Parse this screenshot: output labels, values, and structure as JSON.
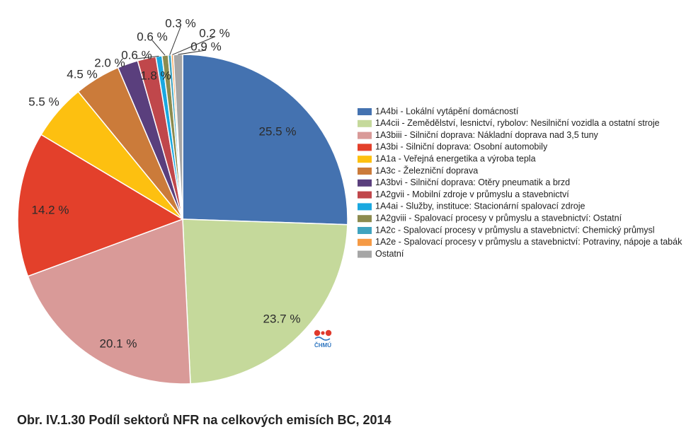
{
  "caption": "Obr. IV.1.30  Podíl sektorů NFR na celkových emisích BC, 2014",
  "logo": {
    "text": "ČHMÚ",
    "icon": "chmu-logo"
  },
  "chart_data": {
    "type": "pie",
    "title": "",
    "legend_position": "right",
    "start_angle_deg": 0,
    "direction": "clockwise",
    "unit": "%",
    "slices": [
      {
        "label": "1A4bi - Lokální vytápění domácností",
        "value": 25.5,
        "value_label": "25.5 %",
        "color": "#4472b0"
      },
      {
        "label": "1A4cii - Zemědělství, lesnictví, rybolov: Nesilniční vozidla a ostatní stroje",
        "value": 23.7,
        "value_label": "23.7 %",
        "color": "#c5d99b"
      },
      {
        "label": "1A3biii - Silniční doprava: Nákladní doprava nad 3,5 tuny",
        "value": 20.1,
        "value_label": "20.1 %",
        "color": "#d99a98"
      },
      {
        "label": "1A3bi - Silniční doprava: Osobní automobily",
        "value": 14.2,
        "value_label": "14.2 %",
        "color": "#e3402b"
      },
      {
        "label": "1A1a - Veřejná energetika a výroba tepla",
        "value": 5.5,
        "value_label": "5.5 %",
        "color": "#fdc010"
      },
      {
        "label": "1A3c - Železniční doprava",
        "value": 4.5,
        "value_label": "4.5 %",
        "color": "#cb7b3a"
      },
      {
        "label": "1A3bvi - Silniční doprava: Otěry pneumatik a brzd",
        "value": 2.0,
        "value_label": "2.0 %",
        "color": "#5a3f7d"
      },
      {
        "label": "1A2gvii - Mobilní zdroje v průmyslu a stavebnictví",
        "value": 1.8,
        "value_label": "1.8 %",
        "color": "#c0474b"
      },
      {
        "label": "1A4ai - Služby, instituce: Stacionární spalovací zdroje",
        "value": 0.6,
        "value_label": "0.6 %",
        "color": "#1aa8e0"
      },
      {
        "label": "1A2gviii - Spalovací procesy v průmyslu a stavebnictví: Ostatní",
        "value": 0.6,
        "value_label": "0.6 %",
        "color": "#8c8b4f"
      },
      {
        "label": "1A2c - Spalovací procesy v průmyslu a stavebnictví: Chemický průmysl",
        "value": 0.3,
        "value_label": "0.3 %",
        "color": "#3fa3bf"
      },
      {
        "label": "1A2e - Spalovací procesy v průmyslu a stavebnictví: Potraviny, nápoje a tabák",
        "value": 0.2,
        "value_label": "0.2 %",
        "color": "#f59a45"
      },
      {
        "label": "Ostatní",
        "value": 0.9,
        "value_label": "0.9 %",
        "color": "#a6a6a6"
      }
    ]
  }
}
